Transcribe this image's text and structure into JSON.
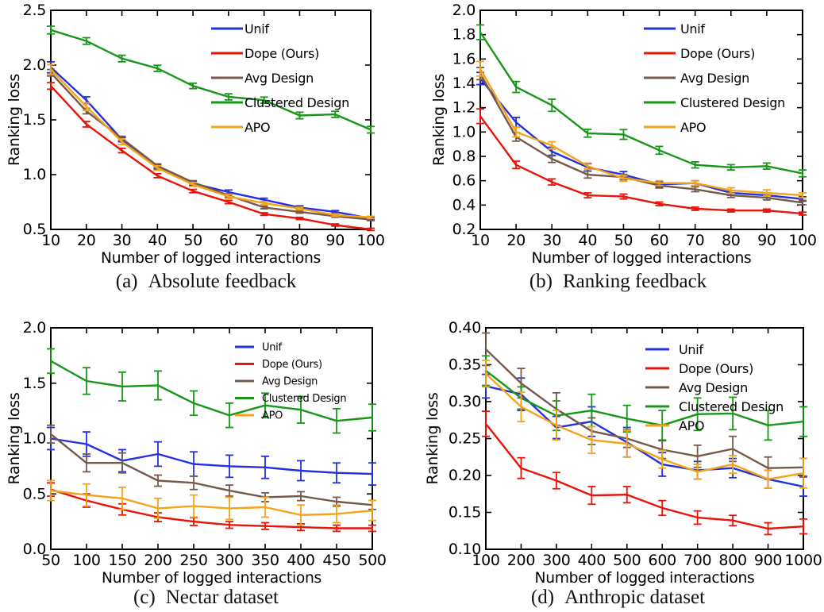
{
  "figure": {
    "background": "#ffffff",
    "xlabel": "Number of logged interactions",
    "ylabel": "Ranking loss",
    "legend_entries": [
      "Unif",
      "Dope (Ours)",
      "Avg Design",
      "Clustered Design",
      "APO"
    ],
    "colors": {
      "unif": "#2230e0",
      "dope": "#e81408",
      "avg_design": "#75594a",
      "clustered_design": "#179717",
      "apo": "#f4a418",
      "axes": "#000000"
    }
  },
  "chart_data": [
    {
      "id": "a",
      "type": "line",
      "caption_label": "(a)",
      "caption_text": "Absolute feedback",
      "xlabel": "Number of logged interactions",
      "ylabel": "Ranking loss",
      "x": [
        10,
        20,
        30,
        40,
        50,
        60,
        70,
        80,
        90,
        100
      ],
      "xtick_labels": [
        "10",
        "20",
        "30",
        "40",
        "50",
        "60",
        "70",
        "80",
        "90",
        "100"
      ],
      "xlim": [
        10,
        100
      ],
      "ylim": [
        0.5,
        2.5
      ],
      "yticks": [
        0.5,
        1.0,
        1.5,
        2.0,
        2.5
      ],
      "ytick_labels": [
        "0.5",
        "1.0",
        "1.5",
        "2.0",
        "2.5"
      ],
      "legend_loc": "upper right",
      "grid": false,
      "series": [
        {
          "name": "Unif",
          "color": "#2230e0",
          "y": [
            1.98,
            1.68,
            1.32,
            1.07,
            0.92,
            0.84,
            0.77,
            0.7,
            0.66,
            0.6
          ],
          "err": [
            0.05,
            0.03,
            0.02,
            0.02,
            0.02,
            0.02,
            0.015,
            0.015,
            0.012,
            0.01
          ]
        },
        {
          "name": "Dope (Ours)",
          "color": "#e81408",
          "y": [
            1.81,
            1.46,
            1.22,
            0.99,
            0.85,
            0.75,
            0.64,
            0.6,
            0.54,
            0.5
          ],
          "err": [
            0.03,
            0.025,
            0.02,
            0.018,
            0.015,
            0.015,
            0.012,
            0.01,
            0.01,
            0.01
          ]
        },
        {
          "name": "Avg Design",
          "color": "#75594a",
          "y": [
            1.93,
            1.58,
            1.33,
            1.08,
            0.93,
            0.81,
            0.7,
            0.66,
            0.62,
            0.59
          ],
          "err": [
            0.03,
            0.025,
            0.02,
            0.018,
            0.015,
            0.015,
            0.012,
            0.012,
            0.01,
            0.01
          ]
        },
        {
          "name": "Clustered Design",
          "color": "#179717",
          "y": [
            2.32,
            2.22,
            2.06,
            1.97,
            1.81,
            1.71,
            1.68,
            1.54,
            1.55,
            1.41
          ],
          "err": [
            0.035,
            0.03,
            0.03,
            0.028,
            0.025,
            0.028,
            0.028,
            0.03,
            0.028,
            0.03
          ]
        },
        {
          "name": "APO",
          "color": "#f4a418",
          "y": [
            1.96,
            1.62,
            1.3,
            1.06,
            0.91,
            0.8,
            0.74,
            0.69,
            0.63,
            0.61
          ],
          "err": [
            0.045,
            0.035,
            0.025,
            0.02,
            0.018,
            0.018,
            0.015,
            0.012,
            0.012,
            0.01
          ]
        }
      ]
    },
    {
      "id": "b",
      "type": "line",
      "caption_label": "(b)",
      "caption_text": "Ranking feedback",
      "xlabel": "Number of logged interactions",
      "ylabel": "Ranking loss",
      "x": [
        10,
        20,
        30,
        40,
        50,
        60,
        70,
        80,
        90,
        100
      ],
      "xtick_labels": [
        "10",
        "20",
        "30",
        "40",
        "50",
        "60",
        "70",
        "80",
        "90",
        "100"
      ],
      "xlim": [
        10,
        100
      ],
      "ylim": [
        0.2,
        2.0
      ],
      "yticks": [
        0.2,
        0.4,
        0.6,
        0.8,
        1.0,
        1.2,
        1.4,
        1.6,
        1.8,
        2.0
      ],
      "ytick_labels": [
        "0.2",
        "0.4",
        "0.6",
        "0.8",
        "1.0",
        "1.2",
        "1.4",
        "1.6",
        "1.8",
        "2.0"
      ],
      "legend_loc": "upper right",
      "grid": false,
      "series": [
        {
          "name": "Unif",
          "color": "#2230e0",
          "y": [
            1.44,
            1.08,
            0.84,
            0.71,
            0.65,
            0.57,
            0.58,
            0.5,
            0.48,
            0.45
          ],
          "err": [
            0.05,
            0.04,
            0.035,
            0.03,
            0.025,
            0.02,
            0.02,
            0.02,
            0.02,
            0.018
          ]
        },
        {
          "name": "Dope (Ours)",
          "color": "#e81408",
          "y": [
            1.13,
            0.73,
            0.59,
            0.48,
            0.47,
            0.41,
            0.37,
            0.355,
            0.355,
            0.33
          ],
          "err": [
            0.06,
            0.03,
            0.025,
            0.02,
            0.02,
            0.015,
            0.013,
            0.012,
            0.012,
            0.012
          ]
        },
        {
          "name": "Avg Design",
          "color": "#75594a",
          "y": [
            1.48,
            0.96,
            0.78,
            0.65,
            0.63,
            0.56,
            0.53,
            0.48,
            0.46,
            0.42
          ],
          "err": [
            0.05,
            0.035,
            0.03,
            0.028,
            0.022,
            0.02,
            0.02,
            0.018,
            0.018,
            0.018
          ]
        },
        {
          "name": "Clustered Design",
          "color": "#179717",
          "y": [
            1.82,
            1.37,
            1.22,
            0.99,
            0.98,
            0.85,
            0.73,
            0.71,
            0.72,
            0.66
          ],
          "err": [
            0.06,
            0.045,
            0.05,
            0.032,
            0.04,
            0.032,
            0.025,
            0.022,
            0.025,
            0.028
          ]
        },
        {
          "name": "APO",
          "color": "#f4a418",
          "y": [
            1.52,
            1.0,
            0.89,
            0.72,
            0.62,
            0.58,
            0.58,
            0.52,
            0.5,
            0.48
          ],
          "err": [
            0.06,
            0.04,
            0.03,
            0.025,
            0.025,
            0.02,
            0.02,
            0.022,
            0.025,
            0.02
          ]
        }
      ]
    },
    {
      "id": "c",
      "type": "line",
      "caption_label": "(c)",
      "caption_text": "Nectar dataset",
      "xlabel": "Number of logged interactions",
      "ylabel": "Ranking loss",
      "x": [
        50,
        100,
        150,
        200,
        250,
        300,
        350,
        400,
        450,
        500
      ],
      "xtick_labels": [
        "50",
        "100",
        "150",
        "200",
        "250",
        "300",
        "350",
        "400",
        "450",
        "500"
      ],
      "xlim": [
        50,
        500
      ],
      "ylim": [
        0.0,
        2.0
      ],
      "yticks": [
        0.0,
        0.5,
        1.0,
        1.5,
        2.0
      ],
      "ytick_labels": [
        "0.0",
        "0.5",
        "1.0",
        "1.5",
        "2.0"
      ],
      "legend_loc": "upper right",
      "grid": false,
      "series": [
        {
          "name": "Unif",
          "color": "#2230e0",
          "y": [
            1.0,
            0.95,
            0.8,
            0.86,
            0.77,
            0.75,
            0.74,
            0.71,
            0.69,
            0.68
          ],
          "err": [
            0.1,
            0.11,
            0.1,
            0.11,
            0.11,
            0.1,
            0.1,
            0.09,
            0.09,
            0.1
          ]
        },
        {
          "name": "Dope (Ours)",
          "color": "#e81408",
          "y": [
            0.54,
            0.44,
            0.36,
            0.29,
            0.25,
            0.22,
            0.21,
            0.2,
            0.19,
            0.19
          ],
          "err": [
            0.06,
            0.06,
            0.05,
            0.04,
            0.035,
            0.03,
            0.03,
            0.03,
            0.028,
            0.028
          ]
        },
        {
          "name": "Avg Design",
          "color": "#75594a",
          "y": [
            1.04,
            0.78,
            0.78,
            0.62,
            0.6,
            0.53,
            0.47,
            0.48,
            0.43,
            0.4
          ],
          "err": [
            0.08,
            0.08,
            0.09,
            0.05,
            0.06,
            0.05,
            0.04,
            0.04,
            0.04,
            0.04
          ]
        },
        {
          "name": "Clustered Design",
          "color": "#179717",
          "y": [
            1.7,
            1.52,
            1.47,
            1.48,
            1.32,
            1.21,
            1.3,
            1.26,
            1.16,
            1.19
          ],
          "err": [
            0.11,
            0.12,
            0.13,
            0.13,
            0.11,
            0.11,
            0.11,
            0.12,
            0.11,
            0.12
          ]
        },
        {
          "name": "APO",
          "color": "#f4a418",
          "y": [
            0.53,
            0.49,
            0.46,
            0.37,
            0.39,
            0.37,
            0.38,
            0.31,
            0.32,
            0.35
          ],
          "err": [
            0.09,
            0.1,
            0.1,
            0.09,
            0.1,
            0.1,
            0.09,
            0.09,
            0.08,
            0.09
          ]
        }
      ]
    },
    {
      "id": "d",
      "type": "line",
      "caption_label": "(d)",
      "caption_text": "Anthropic dataset",
      "xlabel": "Number of logged interactions",
      "ylabel": "Ranking loss",
      "x": [
        100,
        200,
        300,
        400,
        500,
        600,
        700,
        800,
        900,
        1000
      ],
      "xtick_labels": [
        "100",
        "200",
        "300",
        "400",
        "500",
        "600",
        "700",
        "800",
        "900",
        "1000"
      ],
      "xlim": [
        100,
        1000
      ],
      "ylim": [
        0.1,
        0.4
      ],
      "yticks": [
        0.1,
        0.15,
        0.2,
        0.25,
        0.3,
        0.35,
        0.4
      ],
      "ytick_labels": [
        "0.10",
        "0.15",
        "0.20",
        "0.25",
        "0.30",
        "0.35",
        "0.40"
      ],
      "legend_loc": "upper right",
      "grid": false,
      "series": [
        {
          "name": "Unif",
          "color": "#2230e0",
          "y": [
            0.321,
            0.31,
            0.265,
            0.273,
            0.245,
            0.215,
            0.207,
            0.21,
            0.195,
            0.185
          ],
          "err": [
            0.016,
            0.022,
            0.015,
            0.02,
            0.02,
            0.016,
            0.012,
            0.013,
            0.012,
            0.013
          ]
        },
        {
          "name": "Dope (Ours)",
          "color": "#e81408",
          "y": [
            0.27,
            0.21,
            0.193,
            0.173,
            0.174,
            0.156,
            0.143,
            0.139,
            0.128,
            0.131
          ],
          "err": [
            0.017,
            0.014,
            0.011,
            0.012,
            0.011,
            0.01,
            0.009,
            0.007,
            0.008,
            0.01
          ]
        },
        {
          "name": "Avg Design",
          "color": "#75594a",
          "y": [
            0.371,
            0.325,
            0.29,
            0.26,
            0.25,
            0.235,
            0.226,
            0.236,
            0.21,
            0.211
          ],
          "err": [
            0.022,
            0.02,
            0.022,
            0.018,
            0.012,
            0.012,
            0.015,
            0.017,
            0.015,
            0.012
          ]
        },
        {
          "name": "Clustered Design",
          "color": "#179717",
          "y": [
            0.342,
            0.305,
            0.281,
            0.288,
            0.277,
            0.268,
            0.283,
            0.284,
            0.268,
            0.273
          ],
          "err": [
            0.02,
            0.015,
            0.02,
            0.022,
            0.018,
            0.02,
            0.022,
            0.022,
            0.02,
            0.02
          ]
        },
        {
          "name": "APO",
          "color": "#f4a418",
          "y": [
            0.338,
            0.293,
            0.268,
            0.248,
            0.243,
            0.222,
            0.205,
            0.215,
            0.195,
            0.203
          ],
          "err": [
            0.018,
            0.02,
            0.02,
            0.018,
            0.018,
            0.012,
            0.01,
            0.012,
            0.012,
            0.02
          ]
        }
      ]
    }
  ]
}
